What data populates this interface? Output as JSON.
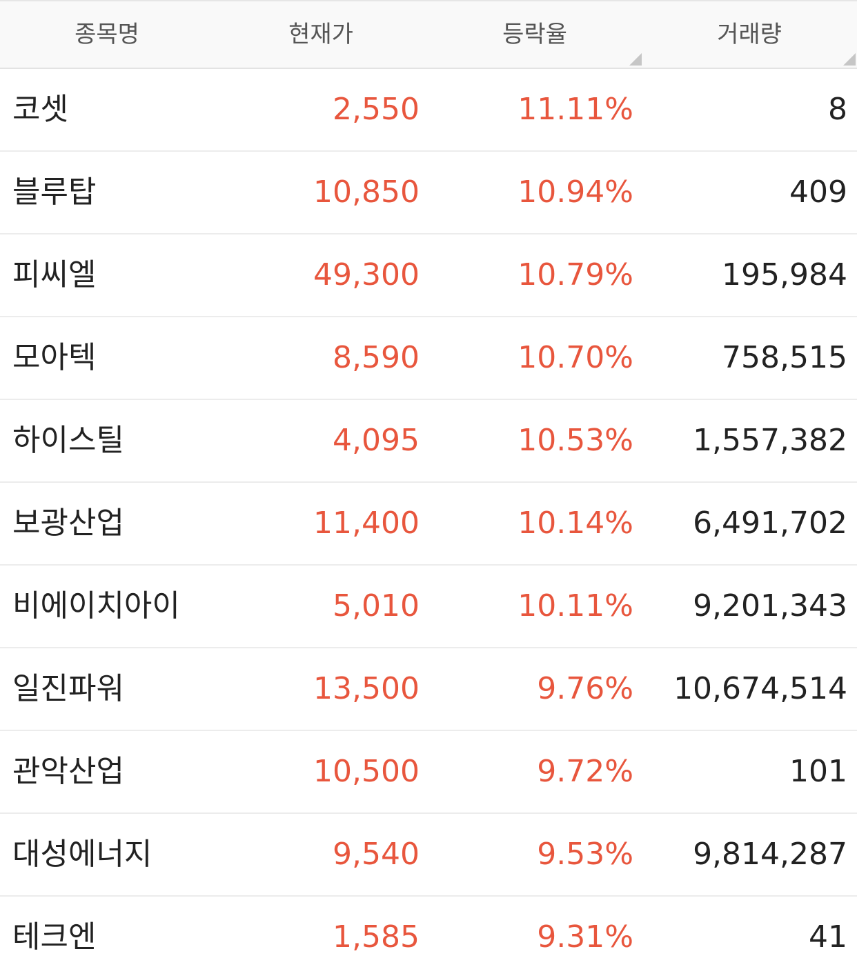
{
  "header": {
    "name": "종목명",
    "price": "현재가",
    "rate": "등락율",
    "volume": "거래량"
  },
  "colors": {
    "up": "#e8563d",
    "text": "#222222",
    "header_text": "#555555",
    "header_bg": "#f9f9f9"
  },
  "rows": [
    {
      "name": "코셋",
      "price": "2,550",
      "rate": "11.11%",
      "volume": "8"
    },
    {
      "name": "블루탑",
      "price": "10,850",
      "rate": "10.94%",
      "volume": "409"
    },
    {
      "name": "피씨엘",
      "price": "49,300",
      "rate": "10.79%",
      "volume": "195,984"
    },
    {
      "name": "모아텍",
      "price": "8,590",
      "rate": "10.70%",
      "volume": "758,515"
    },
    {
      "name": "하이스틸",
      "price": "4,095",
      "rate": "10.53%",
      "volume": "1,557,382"
    },
    {
      "name": "보광산업",
      "price": "11,400",
      "rate": "10.14%",
      "volume": "6,491,702"
    },
    {
      "name": "비에이치아이",
      "price": "5,010",
      "rate": "10.11%",
      "volume": "9,201,343"
    },
    {
      "name": "일진파워",
      "price": "13,500",
      "rate": "9.76%",
      "volume": "10,674,514"
    },
    {
      "name": "관악산업",
      "price": "10,500",
      "rate": "9.72%",
      "volume": "101"
    },
    {
      "name": "대성에너지",
      "price": "9,540",
      "rate": "9.53%",
      "volume": "9,814,287"
    },
    {
      "name": "테크엔",
      "price": "1,585",
      "rate": "9.31%",
      "volume": "41"
    }
  ]
}
